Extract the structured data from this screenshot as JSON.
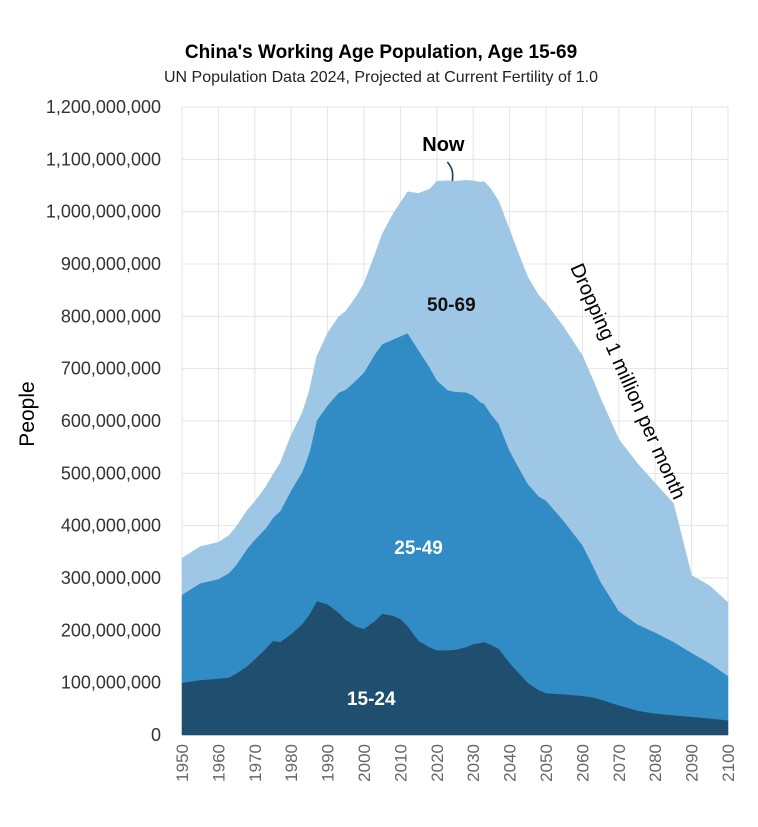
{
  "chart_data": {
    "type": "area",
    "stacked": true,
    "title": "China's Working Age Population, Age 15-69",
    "subtitle": "UN Population Data 2024, Projected at Current Fertility of 1.0",
    "ylabel": "People",
    "xlabel": "",
    "xlim": [
      1950,
      2100
    ],
    "ylim": [
      0,
      1200000000
    ],
    "grid": true,
    "x_ticks": [
      1950,
      1960,
      1970,
      1980,
      1990,
      2000,
      2010,
      2020,
      2030,
      2040,
      2050,
      2060,
      2070,
      2080,
      2090,
      2100
    ],
    "y_ticks": [
      0,
      100000000,
      200000000,
      300000000,
      400000000,
      500000000,
      600000000,
      700000000,
      800000000,
      900000000,
      1000000000,
      1100000000,
      1200000000
    ],
    "y_tick_labels": [
      "0",
      "100,000,000",
      "200,000,000",
      "300,000,000",
      "400,000,000",
      "500,000,000",
      "600,000,000",
      "700,000,000",
      "800,000,000",
      "900,000,000",
      "1,000,000,000",
      "1,100,000,000",
      "1,200,000,000"
    ],
    "x": [
      1950,
      1955,
      1960,
      1963,
      1965,
      1968,
      1970,
      1973,
      1975,
      1977,
      1980,
      1983,
      1985,
      1987,
      1990,
      1993,
      1995,
      1998,
      2000,
      2003,
      2005,
      2008,
      2010,
      2012,
      2015,
      2018,
      2020,
      2023,
      2025,
      2028,
      2030,
      2032,
      2033,
      2035,
      2037,
      2040,
      2043,
      2045,
      2048,
      2050,
      2055,
      2060,
      2063,
      2065,
      2070,
      2075,
      2080,
      2085,
      2090,
      2095,
      2100
    ],
    "series": [
      {
        "name": "15-24",
        "color": "#1f4e6f",
        "values": [
          100,
          105,
          108,
          110,
          118,
          132,
          145,
          165,
          180,
          178,
          193,
          212,
          230,
          256,
          250,
          234,
          220,
          207,
          203,
          218,
          232,
          228,
          222,
          208,
          180,
          168,
          162,
          162,
          163,
          168,
          174,
          176,
          178,
          172,
          165,
          138,
          115,
          100,
          86,
          80,
          78,
          75,
          72,
          68,
          57,
          47,
          41,
          38,
          35,
          32,
          28
        ]
      },
      {
        "name": "25-49",
        "color": "#318bc4",
        "values": [
          168,
          185,
          190,
          200,
          208,
          225,
          228,
          230,
          235,
          250,
          275,
          290,
          310,
          345,
          380,
          420,
          440,
          472,
          490,
          510,
          515,
          528,
          540,
          560,
          555,
          535,
          516,
          497,
          493,
          487,
          475,
          460,
          455,
          440,
          430,
          405,
          390,
          380,
          370,
          368,
          330,
          288,
          250,
          225,
          180,
          165,
          155,
          140,
          122,
          105,
          85
        ]
      },
      {
        "name": "50-69",
        "color": "#9dc7e4",
        "values": [
          70,
          70,
          70,
          72,
          73,
          73,
          73,
          79,
          83,
          92,
          105,
          113,
          118,
          122,
          138,
          145,
          150,
          160,
          170,
          190,
          210,
          240,
          255,
          270,
          300,
          340,
          380,
          400,
          402,
          405,
          410,
          420,
          425,
          430,
          425,
          422,
          405,
          395,
          384,
          377,
          370,
          362,
          355,
          350,
          328,
          308,
          285,
          265,
          148,
          148,
          140
        ]
      }
    ],
    "value_unit": "million people",
    "band_labels": [
      "15-24",
      "25-49",
      "50-69"
    ],
    "annotations": [
      {
        "text": "Now",
        "x": 2024
      },
      {
        "text": "Dropping 1 million per month",
        "x": 2070
      }
    ]
  }
}
